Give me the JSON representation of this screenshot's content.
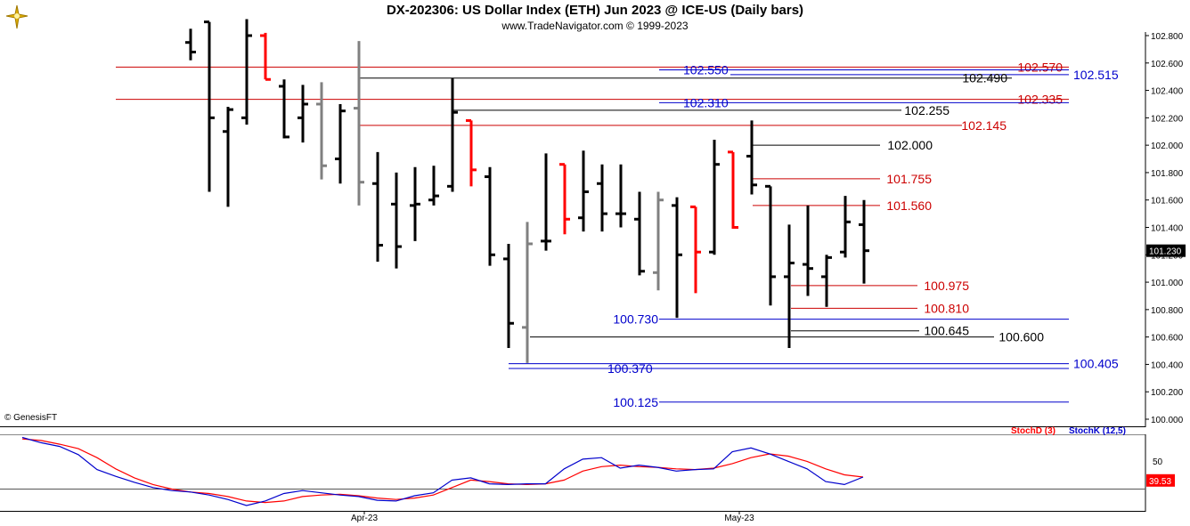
{
  "header": {
    "title": "DX-202306:  US Dollar Index (ETH) Jun 2023 @ ICE-US  (Daily bars)",
    "subtitle": "www.TradeNavigator.com © 1999-2023",
    "logo_icon": "trade-navigator-logo"
  },
  "watermark": "© GenesisFT",
  "last_price_label": "101.230",
  "colors": {
    "up_bar": "#000000",
    "down_bar_red": "#ff0000",
    "neutral_bar_gray": "#808080",
    "level_red": "#cc0000",
    "level_black": "#000000",
    "level_blue": "#0000cc",
    "stoch_d": "#ff0000",
    "stoch_k": "#0000cc"
  },
  "chart_data": [
    {
      "type": "ohlc",
      "ylim": [
        100.0,
        102.8
      ],
      "y_ticks": [
        "102.800",
        "102.600",
        "102.400",
        "102.200",
        "102.000",
        "101.800",
        "101.600",
        "101.400",
        "101.200",
        "101.000",
        "100.800",
        "100.600",
        "100.400",
        "100.200",
        "100.000"
      ],
      "x_ticks": [
        "Apr-23",
        "May-23"
      ],
      "bars": [
        {
          "open": 102.75,
          "high": 102.85,
          "low": 102.62,
          "close": 102.68,
          "color": "black"
        },
        {
          "open": 102.9,
          "high": 102.9,
          "low": 101.66,
          "close": 102.2,
          "color": "black"
        },
        {
          "open": 102.1,
          "high": 102.28,
          "low": 101.55,
          "close": 102.26,
          "color": "black"
        },
        {
          "open": 102.2,
          "high": 102.92,
          "low": 102.15,
          "close": 102.8,
          "color": "black"
        },
        {
          "open": 102.8,
          "high": 102.82,
          "low": 102.48,
          "close": 102.48,
          "color": "red"
        },
        {
          "open": 102.43,
          "high": 102.48,
          "low": 102.05,
          "close": 102.06,
          "color": "black"
        },
        {
          "open": 102.2,
          "high": 102.44,
          "low": 102.02,
          "close": 102.3,
          "color": "black"
        },
        {
          "open": 102.3,
          "high": 102.46,
          "low": 101.75,
          "close": 101.85,
          "color": "gray"
        },
        {
          "open": 101.9,
          "high": 102.3,
          "low": 101.72,
          "close": 102.25,
          "color": "black"
        },
        {
          "open": 102.27,
          "high": 102.76,
          "low": 101.56,
          "close": 101.73,
          "color": "gray"
        },
        {
          "open": 101.72,
          "high": 101.95,
          "low": 101.15,
          "close": 101.27,
          "color": "black"
        },
        {
          "open": 101.57,
          "high": 101.8,
          "low": 101.1,
          "close": 101.26,
          "color": "black"
        },
        {
          "open": 101.56,
          "high": 101.84,
          "low": 101.3,
          "close": 101.57,
          "color": "black"
        },
        {
          "open": 101.6,
          "high": 101.85,
          "low": 101.56,
          "close": 101.63,
          "color": "black"
        },
        {
          "open": 101.7,
          "high": 102.49,
          "low": 101.66,
          "close": 102.24,
          "color": "black"
        },
        {
          "open": 102.18,
          "high": 102.18,
          "low": 101.7,
          "close": 101.82,
          "color": "red"
        },
        {
          "open": 101.77,
          "high": 101.84,
          "low": 101.12,
          "close": 101.2,
          "color": "black"
        },
        {
          "open": 101.17,
          "high": 101.28,
          "low": 100.52,
          "close": 100.7,
          "color": "black"
        },
        {
          "open": 100.67,
          "high": 101.44,
          "low": 100.41,
          "close": 101.28,
          "color": "gray"
        },
        {
          "open": 101.3,
          "high": 101.94,
          "low": 101.23,
          "close": 101.3,
          "color": "black"
        },
        {
          "open": 101.86,
          "high": 101.86,
          "low": 101.35,
          "close": 101.46,
          "color": "red"
        },
        {
          "open": 101.47,
          "high": 101.96,
          "low": 101.37,
          "close": 101.66,
          "color": "black"
        },
        {
          "open": 101.72,
          "high": 101.86,
          "low": 101.37,
          "close": 101.5,
          "color": "black"
        },
        {
          "open": 101.5,
          "high": 101.86,
          "low": 101.4,
          "close": 101.5,
          "color": "black"
        },
        {
          "open": 101.46,
          "high": 101.66,
          "low": 101.05,
          "close": 101.08,
          "color": "black"
        },
        {
          "open": 101.07,
          "high": 101.66,
          "low": 100.94,
          "close": 101.6,
          "color": "gray"
        },
        {
          "open": 101.56,
          "high": 101.62,
          "low": 100.74,
          "close": 101.2,
          "color": "black"
        },
        {
          "open": 101.55,
          "high": 101.55,
          "low": 100.92,
          "close": 101.22,
          "color": "red"
        },
        {
          "open": 101.22,
          "high": 102.04,
          "low": 101.2,
          "close": 101.86,
          "color": "black"
        },
        {
          "open": 101.95,
          "high": 101.95,
          "low": 101.39,
          "close": 101.4,
          "color": "red"
        },
        {
          "open": 101.92,
          "high": 102.18,
          "low": 101.64,
          "close": 101.71,
          "color": "black"
        },
        {
          "open": 101.7,
          "high": 101.7,
          "low": 100.83,
          "close": 101.04,
          "color": "black"
        },
        {
          "open": 101.04,
          "high": 101.42,
          "low": 100.52,
          "close": 101.14,
          "color": "black"
        },
        {
          "open": 101.13,
          "high": 101.56,
          "low": 100.9,
          "close": 101.1,
          "color": "black"
        },
        {
          "open": 101.04,
          "high": 101.2,
          "low": 100.82,
          "close": 101.18,
          "color": "black"
        },
        {
          "open": 101.22,
          "high": 101.63,
          "low": 101.18,
          "close": 101.44,
          "color": "black"
        },
        {
          "open": 101.42,
          "high": 101.6,
          "low": 100.99,
          "close": 101.23,
          "color": "black"
        }
      ],
      "levels": [
        {
          "value": 102.57,
          "label": "102.570",
          "color": "red"
        },
        {
          "value": 102.55,
          "label": "102.550",
          "color": "blue"
        },
        {
          "value": 102.515,
          "label": "102.515",
          "color": "blue"
        },
        {
          "value": 102.49,
          "label": "102.490",
          "color": "black"
        },
        {
          "value": 102.335,
          "label": "102.335",
          "color": "red"
        },
        {
          "value": 102.31,
          "label": "102.310",
          "color": "blue"
        },
        {
          "value": 102.255,
          "label": "102.255",
          "color": "black"
        },
        {
          "value": 102.145,
          "label": "102.145",
          "color": "red"
        },
        {
          "value": 102.0,
          "label": "102.000",
          "color": "black"
        },
        {
          "value": 101.755,
          "label": "101.755",
          "color": "red"
        },
        {
          "value": 101.56,
          "label": "101.560",
          "color": "red"
        },
        {
          "value": 100.975,
          "label": "100.975",
          "color": "red"
        },
        {
          "value": 100.81,
          "label": "100.810",
          "color": "red"
        },
        {
          "value": 100.73,
          "label": "100.730",
          "color": "blue"
        },
        {
          "value": 100.645,
          "label": "100.645",
          "color": "black"
        },
        {
          "value": 100.6,
          "label": "100.600",
          "color": "black"
        },
        {
          "value": 100.405,
          "label": "100.405",
          "color": "blue"
        },
        {
          "value": 100.37,
          "label": "100.370",
          "color": "blue"
        },
        {
          "value": 100.125,
          "label": "100.125",
          "color": "blue"
        }
      ]
    },
    {
      "type": "line",
      "ylim": [
        0,
        100
      ],
      "y_ticks": [
        "50"
      ],
      "last_value_label": "39.53",
      "series": [
        {
          "name": "StochD (3)",
          "color": "red",
          "values": [
            95,
            93,
            88,
            82,
            70,
            55,
            43,
            34,
            28,
            24,
            22,
            18,
            12,
            10,
            12,
            18,
            20,
            21,
            19,
            16,
            14,
            16,
            20,
            30,
            40,
            38,
            35,
            34,
            35,
            40,
            52,
            58,
            60,
            58,
            57,
            55,
            54,
            56,
            62,
            70,
            75,
            72,
            65,
            55,
            47,
            44
          ]
        },
        {
          "name": "StochK (12,5)",
          "color": "blue",
          "values": [
            97,
            90,
            85,
            74,
            54,
            45,
            37,
            30,
            26,
            24,
            20,
            14,
            6,
            12,
            22,
            26,
            23,
            20,
            18,
            13,
            12,
            19,
            23,
            40,
            43,
            35,
            34,
            35,
            35,
            55,
            68,
            70,
            56,
            60,
            57,
            52,
            54,
            55,
            78,
            83,
            75,
            65,
            55,
            38,
            34,
            44
          ]
        }
      ]
    }
  ]
}
